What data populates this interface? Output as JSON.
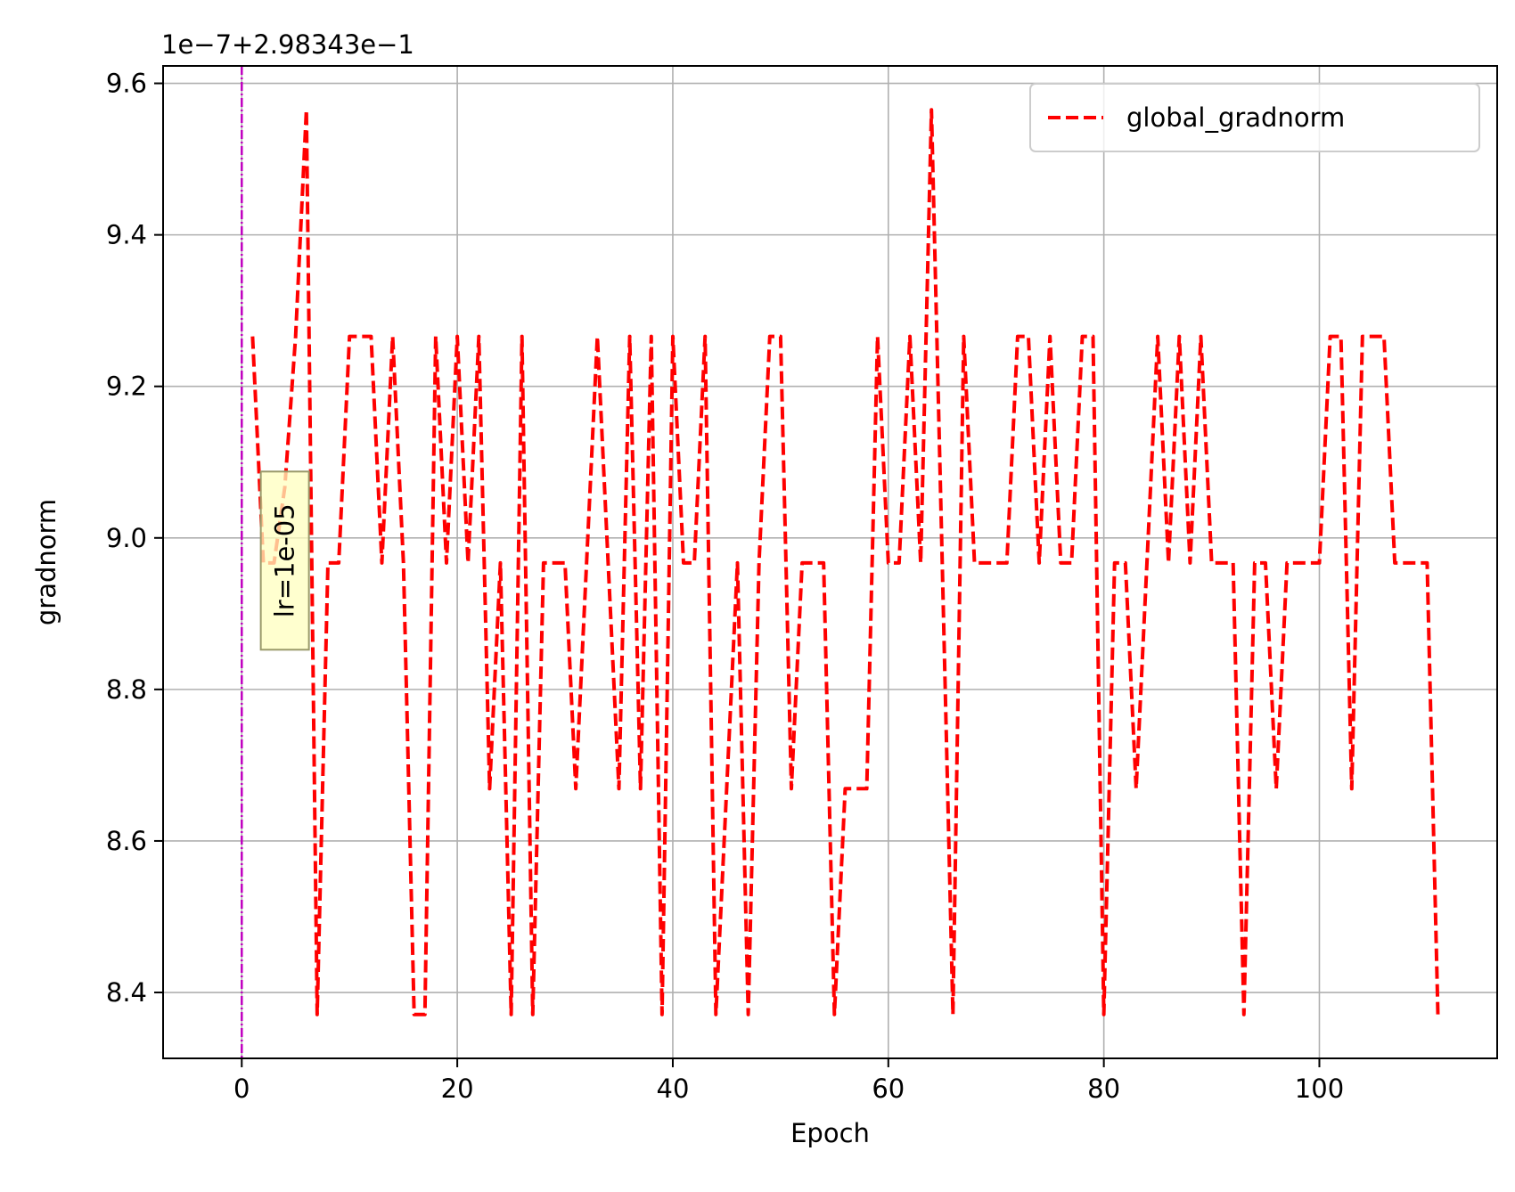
{
  "chart_data": {
    "type": "line",
    "xlabel": "Epoch",
    "ylabel": "gradnorm",
    "offset_text": "1e−7+2.98343e−1",
    "xlim": [
      -7.3,
      116.5
    ],
    "ylim": [
      8.313,
      9.623
    ],
    "xticks": [
      0,
      20,
      40,
      60,
      80,
      100
    ],
    "yticks": [
      8.4,
      8.6,
      8.8,
      9.0,
      9.2,
      9.4,
      9.6
    ],
    "ytick_labels": [
      "8.4",
      "8.6",
      "8.8",
      "9.0",
      "9.2",
      "9.4",
      "9.6"
    ],
    "grid": true,
    "legend_position": "upper-right",
    "vline": {
      "x": 0,
      "color": "#bf00bf"
    },
    "annotation": {
      "text": "lr=1e-05",
      "x": 4,
      "y": 8.97,
      "rotation": 90,
      "bg": "#ffffbf"
    },
    "series": [
      {
        "name": "global_gradnorm",
        "color": "#ff0000",
        "style": "dashed",
        "x": [
          1,
          2,
          3,
          4,
          5,
          6,
          7,
          8,
          9,
          10,
          11,
          12,
          13,
          14,
          15,
          16,
          17,
          18,
          19,
          20,
          21,
          22,
          23,
          24,
          25,
          26,
          27,
          28,
          29,
          30,
          31,
          32,
          33,
          34,
          35,
          36,
          37,
          38,
          39,
          40,
          41,
          42,
          43,
          44,
          45,
          46,
          47,
          48,
          49,
          50,
          51,
          52,
          53,
          54,
          55,
          56,
          57,
          58,
          59,
          60,
          61,
          62,
          63,
          64,
          65,
          66,
          67,
          68,
          69,
          70,
          71,
          72,
          73,
          74,
          75,
          76,
          77,
          78,
          79,
          80,
          81,
          82,
          83,
          84,
          85,
          86,
          87,
          88,
          89,
          90,
          91,
          92,
          93,
          94,
          95,
          96,
          97,
          98,
          99,
          100,
          101,
          102,
          103,
          104,
          105,
          106,
          107,
          108,
          109,
          110,
          111
        ],
        "values": [
          9.266,
          8.967,
          8.967,
          9.067,
          9.266,
          9.565,
          8.371,
          8.967,
          8.967,
          9.266,
          9.266,
          9.266,
          8.967,
          9.266,
          8.967,
          8.371,
          8.371,
          9.266,
          8.967,
          9.266,
          8.967,
          9.266,
          8.669,
          8.967,
          8.371,
          9.266,
          8.371,
          8.967,
          8.967,
          8.967,
          8.669,
          8.967,
          9.266,
          8.967,
          8.669,
          9.266,
          8.669,
          9.266,
          8.371,
          9.266,
          8.967,
          8.967,
          9.266,
          8.371,
          8.669,
          8.967,
          8.371,
          8.967,
          9.266,
          9.266,
          8.669,
          8.967,
          8.967,
          8.967,
          8.371,
          8.669,
          8.669,
          8.669,
          9.266,
          8.967,
          8.967,
          9.266,
          8.967,
          9.565,
          8.967,
          8.371,
          9.266,
          8.967,
          8.967,
          8.967,
          8.967,
          9.266,
          9.266,
          8.967,
          9.266,
          8.967,
          8.967,
          9.266,
          9.266,
          8.371,
          8.967,
          8.967,
          8.669,
          8.967,
          9.266,
          8.967,
          9.266,
          8.967,
          9.266,
          8.967,
          8.967,
          8.967,
          8.371,
          8.967,
          8.967,
          8.669,
          8.967,
          8.967,
          8.967,
          8.967,
          9.266,
          9.266,
          8.669,
          9.266,
          9.266,
          9.266,
          8.967,
          8.967,
          8.967,
          8.967,
          8.371
        ]
      }
    ]
  }
}
